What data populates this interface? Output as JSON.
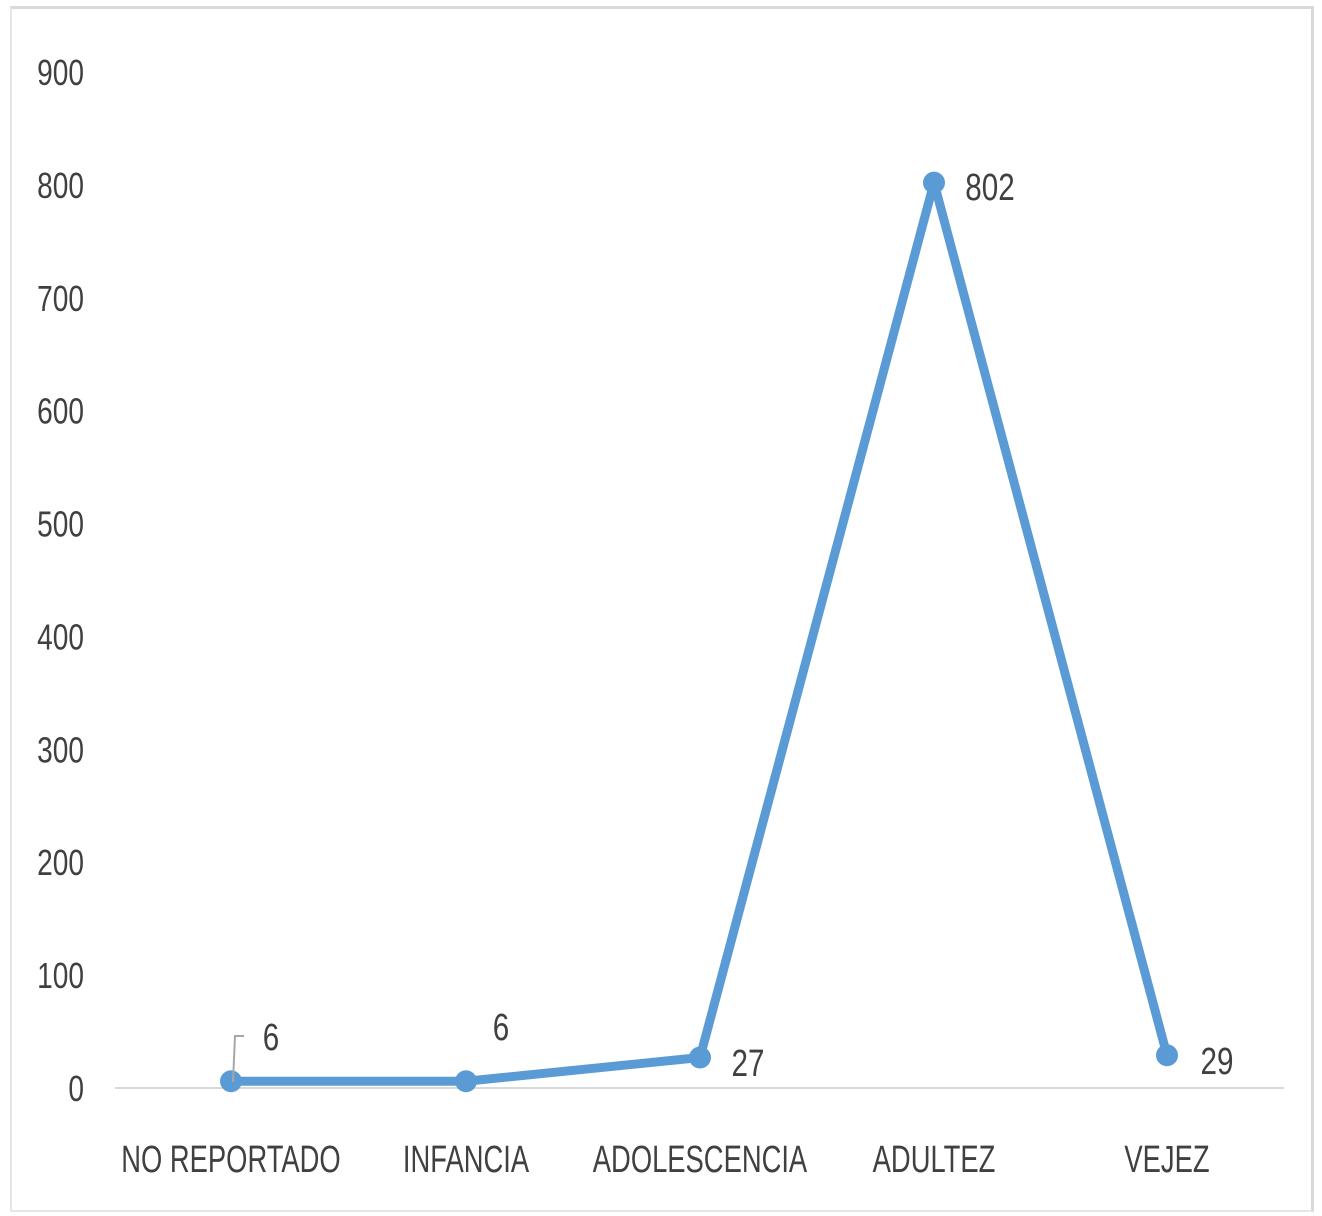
{
  "chart_data": {
    "type": "line",
    "title": "",
    "xlabel": "",
    "ylabel": "",
    "categories": [
      "NO REPORTADO",
      "INFANCIA",
      "ADOLESCENCIA",
      "ADULTEZ",
      "VEJEZ"
    ],
    "series": [
      {
        "values": [
          6,
          6,
          27,
          802,
          29
        ],
        "color": "#5b9bd5"
      }
    ],
    "data_labels": [
      "6",
      "6",
      "27",
      "802",
      "29"
    ],
    "ylim": [
      0,
      900
    ],
    "yticks": [
      0,
      100,
      200,
      300,
      400,
      500,
      600,
      700,
      800,
      900
    ],
    "ytick_labels": [
      "0",
      "100",
      "200",
      "300",
      "400",
      "500",
      "600",
      "700",
      "800",
      "900"
    ],
    "grid": false,
    "legend": "none",
    "colors": {
      "line": "#5b9bd5",
      "axis": "#d9d9d9",
      "text": "#404040"
    }
  }
}
